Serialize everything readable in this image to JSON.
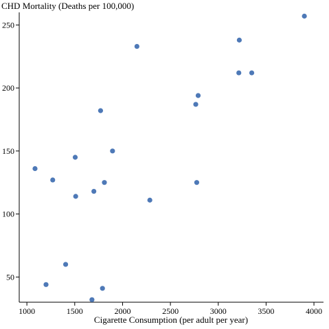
{
  "chart_data": {
    "type": "scatter",
    "xlabel": "Cigarette Consumption (per adult per year)",
    "ylabel": "CHD Mortality (Deaths per 100,000)",
    "xlim": [
      920,
      4100
    ],
    "ylim": [
      30,
      260
    ],
    "xticks": [
      1000,
      1500,
      2000,
      2500,
      3000,
      3500,
      4000
    ],
    "yticks": [
      50,
      100,
      150,
      200,
      250
    ],
    "grid": false,
    "point_color": "#4e79b7",
    "points": [
      {
        "x": 1085,
        "y": 136
      },
      {
        "x": 1200,
        "y": 44
      },
      {
        "x": 1270,
        "y": 127
      },
      {
        "x": 1405,
        "y": 60
      },
      {
        "x": 1505,
        "y": 145
      },
      {
        "x": 1510,
        "y": 114
      },
      {
        "x": 1680,
        "y": 32
      },
      {
        "x": 1700,
        "y": 118
      },
      {
        "x": 1770,
        "y": 182
      },
      {
        "x": 1790,
        "y": 41
      },
      {
        "x": 1810,
        "y": 125
      },
      {
        "x": 1895,
        "y": 150
      },
      {
        "x": 2150,
        "y": 233
      },
      {
        "x": 2285,
        "y": 111
      },
      {
        "x": 2765,
        "y": 187
      },
      {
        "x": 2775,
        "y": 125
      },
      {
        "x": 2790,
        "y": 194
      },
      {
        "x": 3215,
        "y": 212
      },
      {
        "x": 3220,
        "y": 238
      },
      {
        "x": 3350,
        "y": 212
      },
      {
        "x": 3900,
        "y": 257
      }
    ]
  }
}
